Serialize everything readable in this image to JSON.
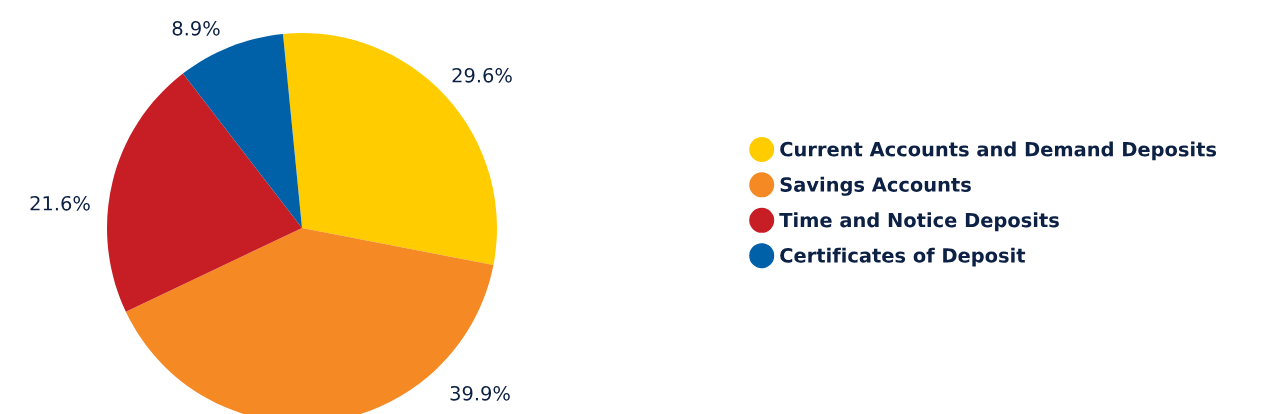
{
  "chart_data": {
    "type": "pie",
    "categories": [
      "Current Accounts and Demand Deposits",
      "Savings Accounts",
      "Time and Notice Deposits",
      "Certificates of Deposit"
    ],
    "values": [
      29.6,
      39.9,
      21.6,
      8.9
    ],
    "colors": [
      "#ffcc00",
      "#f58a25",
      "#c71e25",
      "#0060a8"
    ],
    "value_labels": [
      "29.6%",
      "39.9%",
      "21.6%",
      "8.9%"
    ],
    "legend": "right"
  }
}
